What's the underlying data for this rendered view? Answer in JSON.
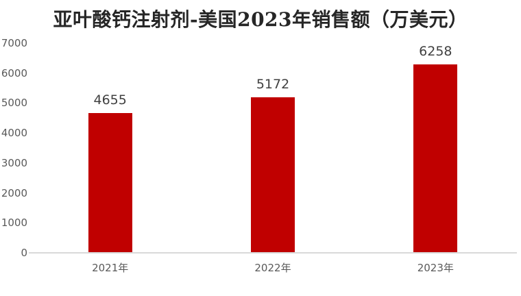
{
  "chart_data": {
    "type": "bar",
    "title": "亚叶酸钙注射剂-美国2023年销售额（万美元）",
    "categories": [
      "2021年",
      "2022年",
      "2023年"
    ],
    "values": [
      4655,
      5172,
      6258
    ],
    "xlabel": "",
    "ylabel": "",
    "ylim": [
      0,
      7000
    ],
    "ytick_step": 1000,
    "yticks": [
      7000,
      6000,
      5000,
      4000,
      3000,
      2000,
      1000,
      0
    ],
    "grid": false,
    "legend_position": "none",
    "value_labels_shown": true,
    "colors": {
      "bar": "#C00000",
      "axis_line": "#D9D9D9",
      "tick_label": "#595959",
      "value_label": "#404040",
      "title": "#262626",
      "background": "#FFFFFF"
    }
  }
}
